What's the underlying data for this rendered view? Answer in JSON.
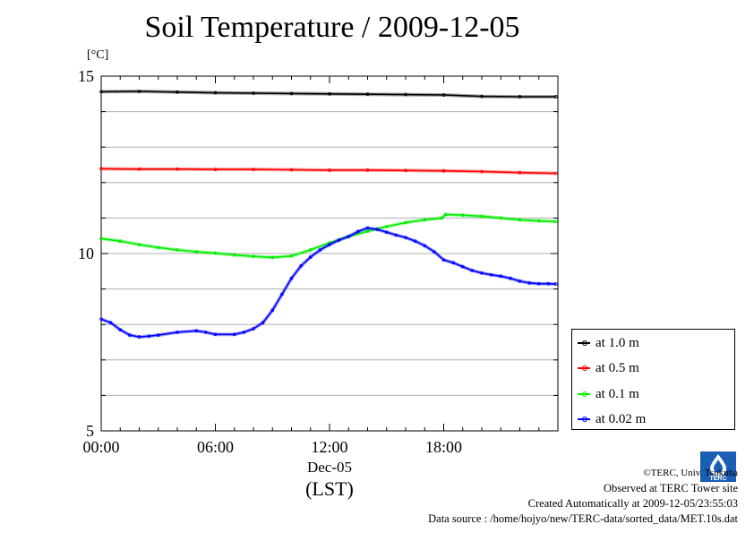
{
  "title": "Soil Temperature / 2009-12-05",
  "unit_label": "[°C]",
  "chart_data": {
    "type": "line",
    "title": "Soil Temperature / 2009-12-05",
    "ylabel": "[°C]",
    "xlabel": "(LST)",
    "date_label": "Dec-05",
    "ylim": [
      5,
      15
    ],
    "xlim": [
      0,
      24
    ],
    "y_ticks": [
      "5",
      "10",
      "15"
    ],
    "x_ticks": [
      {
        "value": 0,
        "label": "00:00"
      },
      {
        "value": 6,
        "label": "06:00"
      },
      {
        "value": 12,
        "label": "12:00"
      },
      {
        "value": 18,
        "label": "18:00"
      }
    ],
    "grid": true,
    "legend_position": "right",
    "series": [
      {
        "name": "at 1.0 m",
        "color": "#000000",
        "x": [
          0,
          2,
          4,
          6,
          8,
          10,
          12,
          14,
          16,
          18,
          20,
          22,
          23.9
        ],
        "y": [
          14.56,
          14.57,
          14.55,
          14.53,
          14.52,
          14.51,
          14.5,
          14.49,
          14.48,
          14.47,
          14.43,
          14.42,
          14.42
        ]
      },
      {
        "name": "at 0.5 m",
        "color": "#ff0000",
        "x": [
          0,
          2,
          4,
          6,
          8,
          10,
          12,
          14,
          16,
          18,
          20,
          22,
          23.9
        ],
        "y": [
          12.39,
          12.38,
          12.38,
          12.37,
          12.37,
          12.36,
          12.35,
          12.35,
          12.34,
          12.33,
          12.31,
          12.28,
          12.26
        ]
      },
      {
        "name": "at 0.1 m",
        "color": "#00ee00",
        "x": [
          0,
          1,
          2,
          3,
          4,
          5,
          6,
          7,
          8,
          9,
          10,
          11,
          12,
          13,
          14,
          15,
          16,
          17,
          17.9,
          18.1,
          19,
          20,
          21,
          22,
          23,
          23.9
        ],
        "y": [
          10.42,
          10.35,
          10.25,
          10.17,
          10.1,
          10.05,
          10.01,
          9.96,
          9.92,
          9.89,
          9.93,
          10.1,
          10.3,
          10.48,
          10.63,
          10.76,
          10.87,
          10.95,
          11.0,
          11.1,
          11.08,
          11.05,
          11.0,
          10.95,
          10.92,
          10.9
        ]
      },
      {
        "name": "at 0.02 m",
        "color": "#0000ff",
        "x": [
          0,
          0.5,
          1,
          1.5,
          2,
          2.5,
          3,
          4,
          5,
          5.5,
          6,
          7,
          7.5,
          8,
          8.5,
          9,
          9.5,
          10,
          10.5,
          11,
          11.5,
          12,
          12.5,
          13,
          13.5,
          14,
          14.5,
          15,
          15.5,
          16,
          16.5,
          17,
          17.5,
          18,
          18.5,
          19,
          19.5,
          20,
          20.5,
          21,
          21.5,
          22,
          22.5,
          23,
          23.5,
          23.9
        ],
        "y": [
          8.15,
          8.05,
          7.85,
          7.7,
          7.65,
          7.67,
          7.7,
          7.78,
          7.82,
          7.78,
          7.72,
          7.72,
          7.78,
          7.88,
          8.05,
          8.4,
          8.85,
          9.3,
          9.65,
          9.9,
          10.1,
          10.25,
          10.38,
          10.48,
          10.62,
          10.72,
          10.68,
          10.6,
          10.52,
          10.45,
          10.35,
          10.22,
          10.05,
          9.82,
          9.74,
          9.63,
          9.52,
          9.45,
          9.4,
          9.36,
          9.3,
          9.22,
          9.17,
          9.15,
          9.15,
          9.14
        ]
      }
    ]
  },
  "legend": [
    {
      "label": "at 1.0 m",
      "color": "#000000"
    },
    {
      "label": "at 0.5 m",
      "color": "#ff0000"
    },
    {
      "label": "at 0.1 m",
      "color": "#00ee00"
    },
    {
      "label": "at 0.02 m",
      "color": "#0000ff"
    }
  ],
  "credits": {
    "copyright": "©TERC, Univ. Tsukuba",
    "observed": "Observed at TERC Tower site",
    "created": "Created Automatically at 2009-12-05/23:55:03",
    "source": "Data source : /home/hojyo/new/TERC-data/sorted_data/MET.10s.dat"
  },
  "logo_text": "TERC"
}
